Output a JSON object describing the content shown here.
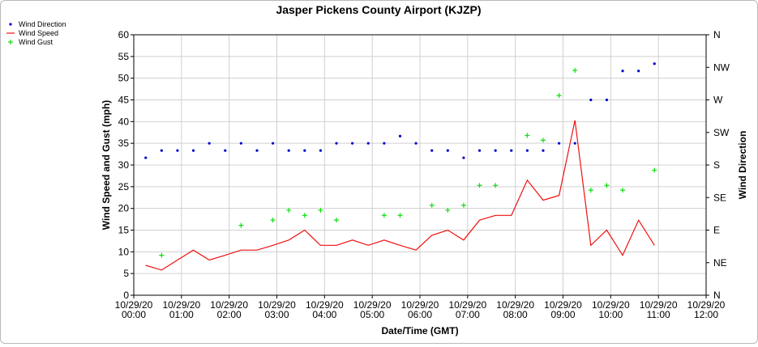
{
  "chart_data": {
    "type": "line",
    "title": "Jasper Pickens County Airport (KJZP)",
    "xlabel": "Date/Time (GMT)",
    "ylabel": "Wind Speed and Gust (mph)",
    "y2label": "Wind Direction",
    "x_ticks": [
      [
        "10/29/20",
        "00:00"
      ],
      [
        "10/29/20",
        "01:00"
      ],
      [
        "10/29/20",
        "02:00"
      ],
      [
        "10/29/20",
        "03:00"
      ],
      [
        "10/29/20",
        "04:00"
      ],
      [
        "10/29/20",
        "05:00"
      ],
      [
        "10/29/20",
        "06:00"
      ],
      [
        "10/29/20",
        "07:00"
      ],
      [
        "10/29/20",
        "08:00"
      ],
      [
        "10/29/20",
        "09:00"
      ],
      [
        "10/29/20",
        "10:00"
      ],
      [
        "10/29/20",
        "11:00"
      ],
      [
        "10/29/20",
        "12:00"
      ]
    ],
    "xlim": [
      "10/29/20 00:00",
      "10/29/20 12:00"
    ],
    "ylim": [
      0,
      60
    ],
    "y_ticks": [
      0,
      5,
      10,
      15,
      20,
      25,
      30,
      35,
      40,
      45,
      50,
      55,
      60
    ],
    "y2_ticks": [
      "N",
      "NE",
      "E",
      "SE",
      "S",
      "SW",
      "W",
      "NW",
      "N"
    ],
    "y2lim": [
      0,
      360
    ],
    "grid": true,
    "legend_position": "top-left",
    "series": [
      {
        "name": "Wind Direction",
        "kind": "points",
        "axis": "right",
        "color": "#0000cc",
        "points": [
          [
            "00:15",
            190
          ],
          [
            "00:35",
            200
          ],
          [
            "00:55",
            200
          ],
          [
            "01:15",
            200
          ],
          [
            "01:35",
            210
          ],
          [
            "01:55",
            200
          ],
          [
            "02:15",
            210
          ],
          [
            "02:35",
            200
          ],
          [
            "02:55",
            210
          ],
          [
            "03:15",
            200
          ],
          [
            "03:35",
            200
          ],
          [
            "03:55",
            200
          ],
          [
            "04:15",
            210
          ],
          [
            "04:35",
            210
          ],
          [
            "04:55",
            210
          ],
          [
            "05:15",
            210
          ],
          [
            "05:35",
            220
          ],
          [
            "05:55",
            210
          ],
          [
            "06:15",
            200
          ],
          [
            "06:35",
            200
          ],
          [
            "06:55",
            190
          ],
          [
            "07:15",
            200
          ],
          [
            "07:35",
            200
          ],
          [
            "07:55",
            200
          ],
          [
            "08:15",
            200
          ],
          [
            "08:35",
            200
          ],
          [
            "08:55",
            210
          ],
          [
            "09:15",
            210
          ],
          [
            "09:35",
            270
          ],
          [
            "09:55",
            270
          ],
          [
            "10:15",
            310
          ],
          [
            "10:35",
            310
          ],
          [
            "10:55",
            320
          ]
        ]
      },
      {
        "name": "Wind Speed",
        "kind": "line",
        "axis": "left",
        "color": "#ee1111",
        "points": [
          [
            "00:15",
            6.9
          ],
          [
            "00:35",
            5.8
          ],
          [
            "00:55",
            8.1
          ],
          [
            "01:15",
            10.4
          ],
          [
            "01:35",
            8.1
          ],
          [
            "01:55",
            9.2
          ],
          [
            "02:15",
            10.4
          ],
          [
            "02:35",
            10.4
          ],
          [
            "02:55",
            11.5
          ],
          [
            "03:15",
            12.7
          ],
          [
            "03:35",
            15.0
          ],
          [
            "03:55",
            11.5
          ],
          [
            "04:15",
            11.5
          ],
          [
            "04:35",
            12.7
          ],
          [
            "04:55",
            11.5
          ],
          [
            "05:15",
            12.7
          ],
          [
            "05:35",
            11.5
          ],
          [
            "05:55",
            10.4
          ],
          [
            "06:15",
            13.8
          ],
          [
            "06:35",
            15.0
          ],
          [
            "06:55",
            12.7
          ],
          [
            "07:15",
            17.3
          ],
          [
            "07:35",
            18.4
          ],
          [
            "07:55",
            18.4
          ],
          [
            "08:15",
            26.5
          ],
          [
            "08:35",
            21.9
          ],
          [
            "08:55",
            23.0
          ],
          [
            "09:15",
            40.3
          ],
          [
            "09:35",
            11.5
          ],
          [
            "09:55",
            15.0
          ],
          [
            "10:15",
            9.2
          ],
          [
            "10:35",
            17.3
          ],
          [
            "10:55",
            11.5
          ]
        ]
      },
      {
        "name": "Wind Gust",
        "kind": "points",
        "axis": "left",
        "color": "#11dd11",
        "points": [
          [
            "00:35",
            9.2
          ],
          [
            "02:15",
            16.1
          ],
          [
            "02:55",
            17.3
          ],
          [
            "03:15",
            19.6
          ],
          [
            "03:35",
            18.4
          ],
          [
            "03:55",
            19.6
          ],
          [
            "04:15",
            17.3
          ],
          [
            "05:15",
            18.4
          ],
          [
            "05:35",
            18.4
          ],
          [
            "06:15",
            20.7
          ],
          [
            "06:35",
            19.6
          ],
          [
            "06:55",
            20.7
          ],
          [
            "07:15",
            25.3
          ],
          [
            "07:35",
            25.3
          ],
          [
            "08:15",
            36.8
          ],
          [
            "08:35",
            35.7
          ],
          [
            "08:55",
            46.0
          ],
          [
            "09:15",
            51.8
          ],
          [
            "09:35",
            24.2
          ],
          [
            "09:55",
            25.3
          ],
          [
            "10:15",
            24.2
          ],
          [
            "10:55",
            28.8
          ]
        ]
      }
    ]
  }
}
